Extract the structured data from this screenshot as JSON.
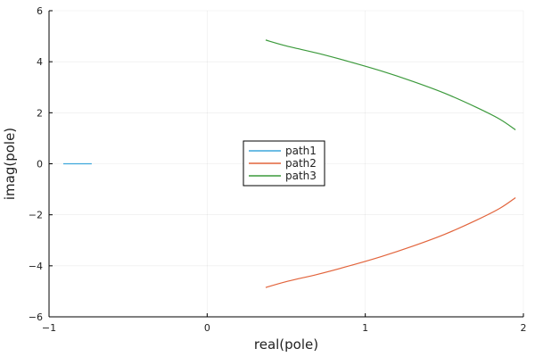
{
  "chart_data": {
    "type": "line",
    "title": "",
    "xlabel": "real(pole)",
    "ylabel": "imag(pole)",
    "xlim": [
      -1,
      2
    ],
    "ylim": [
      -6,
      6
    ],
    "xticks": [
      -1,
      0,
      1,
      2
    ],
    "yticks": [
      -6,
      -4,
      -2,
      0,
      2,
      4,
      6
    ],
    "grid": true,
    "legend_position": "center",
    "series": [
      {
        "name": "path1",
        "color": "#3da7dc",
        "x": [
          -0.91,
          -0.85,
          -0.8,
          -0.73
        ],
        "y": [
          0,
          0,
          0,
          0
        ]
      },
      {
        "name": "path2",
        "color": "#e2643c",
        "x": [
          0.37,
          0.5,
          0.7,
          0.9,
          1.1,
          1.3,
          1.5,
          1.7,
          1.85,
          1.95
        ],
        "y": [
          -4.85,
          -4.62,
          -4.33,
          -4.0,
          -3.64,
          -3.23,
          -2.77,
          -2.22,
          -1.75,
          -1.33
        ]
      },
      {
        "name": "path3",
        "color": "#3c9a3c",
        "x": [
          0.37,
          0.5,
          0.7,
          0.9,
          1.1,
          1.3,
          1.5,
          1.7,
          1.85,
          1.95
        ],
        "y": [
          4.85,
          4.62,
          4.33,
          4.0,
          3.64,
          3.23,
          2.77,
          2.22,
          1.75,
          1.33
        ]
      }
    ]
  }
}
